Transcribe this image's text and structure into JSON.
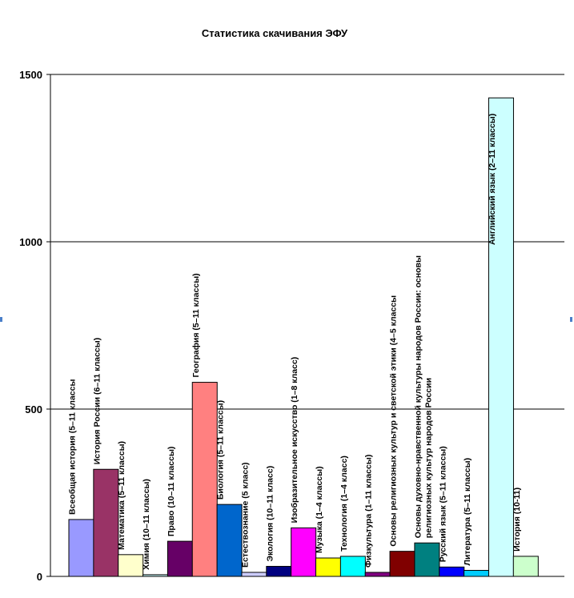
{
  "chart_data": {
    "type": "bar",
    "title": "Статистика скачивания ЭФУ",
    "xlabel": "",
    "ylabel": "",
    "ylim": [
      0,
      1500
    ],
    "yticks": [
      0,
      500,
      1000,
      1500
    ],
    "grid": true,
    "legend": "none",
    "categories": [
      "Всеобщая история (5–11 классы",
      "История России (6–11 классы)",
      "Математика (5–11 классы)",
      "Химия (10–11 классы)",
      "Право (10–11 классы)",
      "География (5–11 классы)",
      "Биология (5–11 классы)",
      "Естествознание (5 класс)",
      "Экология (10–11 класс)",
      "Изобразительное искусство (1–8 класс)",
      "Музыка (1–4 классы)",
      "Технология (1–4 класс)",
      "Физкультура (1–11 классы)",
      "Основы религиозных культур и светской этики (4–5 классы",
      "Основы духовно-нравственной культуры народов России: основы религиозных культур народов России",
      "Русский язык (5–11 классы)",
      "Литература (5–11 классы)",
      "Английский язык (2–11 классы)",
      "История (10-11)"
    ],
    "values": [
      170,
      320,
      65,
      5,
      105,
      580,
      215,
      12,
      30,
      145,
      55,
      60,
      12,
      75,
      100,
      28,
      18,
      1430,
      60
    ],
    "colors": [
      "#9999ff",
      "#993366",
      "#ffffcc",
      "#ccffff",
      "#660066",
      "#ff8080",
      "#0066cc",
      "#ccccff",
      "#000080",
      "#ff00ff",
      "#ffff00",
      "#00ffff",
      "#800080",
      "#800000",
      "#008080",
      "#0000ff",
      "#00ccff",
      "#ccffff",
      "#ccffcc"
    ]
  }
}
